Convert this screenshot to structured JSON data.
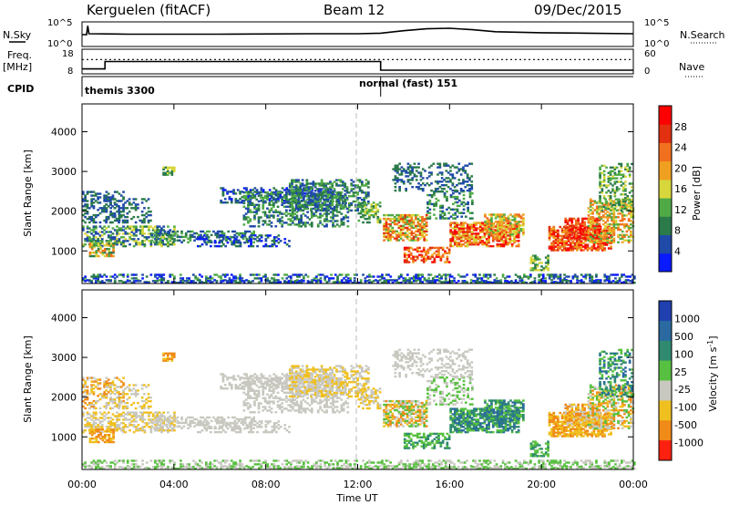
{
  "header": {
    "station": "Kerguelen (fitACF)",
    "beam": "Beam 12",
    "date": "09/Dec/2015"
  },
  "side_labels": {
    "nsky": "N.Sky",
    "freq_top": "Freq.",
    "freq_unit": "[MHz]",
    "cpid": "CPID",
    "nsearch": "N.Search",
    "nave": "Nave"
  },
  "chart_data": [
    {
      "type": "line",
      "name": "noise",
      "left_ticks": [
        "10^5",
        "10^0"
      ],
      "right_ticks": [
        "10^5",
        "10^0"
      ],
      "series": [
        {
          "name": "N.Sky",
          "x_hours": [
            0,
            0.2,
            0.25,
            0.3,
            2,
            6,
            10,
            12,
            13,
            14,
            15,
            16,
            17,
            18,
            20,
            22,
            24
          ],
          "values_log": [
            2.4,
            2.4,
            4.2,
            2.6,
            2.5,
            2.5,
            2.6,
            2.6,
            2.7,
            3.2,
            3.6,
            3.7,
            3.4,
            3.0,
            2.8,
            2.7,
            2.6
          ]
        },
        {
          "name": "N.Search",
          "x_hours": [],
          "values_log": []
        }
      ]
    },
    {
      "type": "line",
      "name": "frequency",
      "left_ticks": [
        "18",
        "8"
      ],
      "right_ticks": [
        "60",
        "0"
      ],
      "series": [
        {
          "name": "Freq.",
          "x_hours": [
            0,
            1,
            1,
            13,
            13,
            24
          ],
          "values": [
            10,
            10,
            13,
            13,
            9.5,
            9.5
          ]
        },
        {
          "name": "Nave",
          "x_hours": [
            0,
            24
          ],
          "values": [
            35,
            35
          ]
        }
      ]
    },
    {
      "type": "table",
      "name": "cpid",
      "segments": [
        {
          "label": "themis 3300",
          "start_hour": 0,
          "end_hour": 13
        },
        {
          "label": "normal (fast) 151",
          "start_hour": 13,
          "end_hour": 24
        }
      ]
    },
    {
      "type": "heatmap",
      "name": "power",
      "ylabel": "Slant Range [km]",
      "ylim": [
        180,
        4700
      ],
      "yticks": [
        1000,
        2000,
        3000,
        4000
      ],
      "colorbar_label": "Power [dB]",
      "colorbar_ticks": [
        4,
        8,
        12,
        16,
        20,
        24,
        28
      ],
      "colorbar_colors": [
        "#0a1aff",
        "#1f4aa8",
        "#2a7a4a",
        "#4faa46",
        "#d7d63b",
        "#f0a020",
        "#f07020",
        "#e23010",
        "#ff0000"
      ]
    },
    {
      "type": "heatmap",
      "name": "velocity",
      "ylabel": "Slant Range [km]",
      "xlabel": "Time UT",
      "ylim": [
        180,
        4700
      ],
      "yticks": [
        1000,
        2000,
        3000,
        4000
      ],
      "xticks": [
        "00:00",
        "04:00",
        "08:00",
        "12:00",
        "16:00",
        "20:00",
        "00:00"
      ],
      "xlim_hours": [
        0,
        24
      ],
      "colorbar_label": "Velocity [m s^-1]",
      "colorbar_ticks": [
        "1000",
        "500",
        "100",
        "25",
        "-25",
        "-100",
        "-500",
        "-1000"
      ],
      "colorbar_colors": [
        "#2040b0",
        "#2a6aa0",
        "#2f8a70",
        "#58c040",
        "#c8c8c0",
        "#f0c020",
        "#f08a18",
        "#ff2010"
      ]
    }
  ]
}
